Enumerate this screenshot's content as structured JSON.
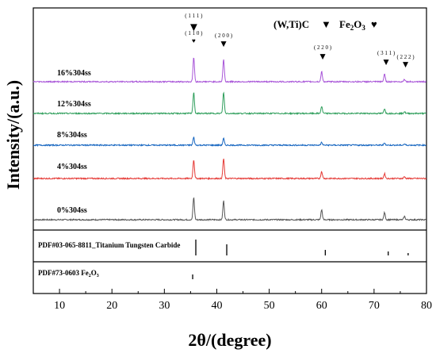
{
  "chart_data": {
    "type": "line",
    "title": "",
    "xlabel": "2θ/(degree)",
    "ylabel": "Intensity/(a.u.)",
    "xlim": [
      5,
      80
    ],
    "xticks": [
      10,
      20,
      30,
      40,
      50,
      60,
      70,
      80
    ],
    "grid": false,
    "legend": {
      "carbide": "(W,Ti)C",
      "oxide_base": "Fe",
      "oxide_sub": "2",
      "oxide_mid": "O",
      "oxide_sub2": "3",
      "carbide_marker": "▼",
      "oxide_marker": "♥"
    },
    "series": [
      {
        "name": "0%304ss",
        "color": "#555555",
        "peak_heights": [
          1.0,
          0.85,
          0.45,
          0.32,
          0.15
        ]
      },
      {
        "name": "4%304ss",
        "color": "#e53935",
        "peak_heights": [
          0.85,
          0.9,
          0.32,
          0.22,
          0.08
        ]
      },
      {
        "name": "8%304ss",
        "color": "#1565c0",
        "peak_heights": [
          0.35,
          0.3,
          0.12,
          0.1,
          0.05
        ]
      },
      {
        "name": "12%304ss",
        "color": "#2e9e5b",
        "peak_heights": [
          0.95,
          0.95,
          0.32,
          0.22,
          0.08
        ]
      },
      {
        "name": "16%304ss",
        "color": "#a855d8",
        "peak_heights": [
          1.1,
          1.0,
          0.45,
          0.35,
          0.12
        ]
      }
    ],
    "peak_positions": [
      35.6,
      41.3,
      60.0,
      72.0,
      75.8
    ],
    "peak_labels": [
      {
        "x": 35.6,
        "hkl": "( 1 1 1 )",
        "marker": "▼"
      },
      {
        "x": 35.6,
        "hkl": "( 1 1 0 )",
        "marker": "♥"
      },
      {
        "x": 41.3,
        "hkl": "( 2 0 0 )",
        "marker": "▼"
      },
      {
        "x": 60.2,
        "hkl": "( 2 2 0 )",
        "marker": "▼"
      },
      {
        "x": 72.3,
        "hkl": "( 3 1 1 )",
        "marker": "▼"
      },
      {
        "x": 76.0,
        "hkl": "( 2 2 2 )",
        "marker": "▼"
      }
    ],
    "references": [
      {
        "base": "PDF#03-065-8811_Titanium Tungsten Carbide",
        "sub": "",
        "tail": "",
        "sub2": "",
        "lines": [
          36.0,
          41.9,
          60.7,
          72.7,
          76.5
        ],
        "heights": [
          1.0,
          0.7,
          0.35,
          0.25,
          0.15
        ]
      },
      {
        "base": "PDF#73-0603 Fe",
        "sub": "2",
        "tail": "O",
        "sub2": "3",
        "lines": [
          35.4
        ],
        "heights": [
          0.5
        ]
      }
    ]
  }
}
